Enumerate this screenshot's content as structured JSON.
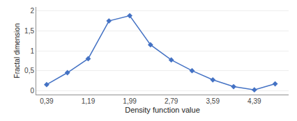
{
  "chart_data": {
    "type": "line",
    "x": [
      0.39,
      0.79,
      1.19,
      1.59,
      1.99,
      2.39,
      2.79,
      3.19,
      3.59,
      3.99,
      4.39,
      4.79
    ],
    "values": [
      0.15,
      0.45,
      0.8,
      1.75,
      1.88,
      1.15,
      0.77,
      0.5,
      0.27,
      0.1,
      0.02,
      0.17
    ],
    "color": "#4472c4",
    "marker": "diamond",
    "xlabel": "Density function value",
    "ylabel": "Fractal dimension",
    "xlim": [
      0.19,
      5.05
    ],
    "ylim": [
      -0.1,
      2.1
    ],
    "xticks": [
      {
        "value": 0.39,
        "label": "0,39"
      },
      {
        "value": 1.19,
        "label": "1,19"
      },
      {
        "value": 1.99,
        "label": "1,99"
      },
      {
        "value": 2.79,
        "label": "2,79"
      },
      {
        "value": 3.59,
        "label": "3,59"
      },
      {
        "value": 4.39,
        "label": "4,39"
      }
    ],
    "yticks": [
      0,
      {
        "value": 0.5,
        "label": "0,5"
      },
      1,
      {
        "value": 1.5,
        "label": "1,5"
      },
      2
    ],
    "grid": "y"
  }
}
